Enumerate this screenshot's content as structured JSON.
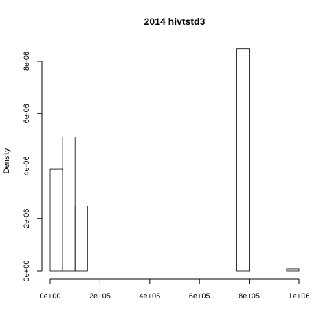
{
  "chart_data": {
    "type": "bar",
    "title": "2014 hivtstd3",
    "xlabel": "",
    "ylabel": "Density",
    "bin_width": 50000,
    "bins": [
      {
        "start": 0,
        "end": 50000,
        "density": 3.88e-06
      },
      {
        "start": 50000,
        "end": 100000,
        "density": 5.1e-06
      },
      {
        "start": 100000,
        "end": 150000,
        "density": 2.48e-06
      },
      {
        "start": 150000,
        "end": 200000,
        "density": 0
      },
      {
        "start": 200000,
        "end": 250000,
        "density": 0
      },
      {
        "start": 250000,
        "end": 300000,
        "density": 0
      },
      {
        "start": 300000,
        "end": 350000,
        "density": 0
      },
      {
        "start": 350000,
        "end": 400000,
        "density": 0
      },
      {
        "start": 400000,
        "end": 450000,
        "density": 0
      },
      {
        "start": 450000,
        "end": 500000,
        "density": 0
      },
      {
        "start": 500000,
        "end": 550000,
        "density": 0
      },
      {
        "start": 550000,
        "end": 600000,
        "density": 0
      },
      {
        "start": 600000,
        "end": 650000,
        "density": 0
      },
      {
        "start": 650000,
        "end": 700000,
        "density": 0
      },
      {
        "start": 700000,
        "end": 750000,
        "density": 0
      },
      {
        "start": 750000,
        "end": 800000,
        "density": 8.48e-06
      },
      {
        "start": 800000,
        "end": 850000,
        "density": 0
      },
      {
        "start": 850000,
        "end": 900000,
        "density": 0
      },
      {
        "start": 900000,
        "end": 950000,
        "density": 0
      },
      {
        "start": 950000,
        "end": 1000000,
        "density": 8e-08
      }
    ],
    "xlim": [
      0,
      1000000
    ],
    "ylim": [
      0,
      8e-06
    ],
    "x_ticks": [
      {
        "value": 0,
        "label": "0e+00"
      },
      {
        "value": 200000,
        "label": "2e+05"
      },
      {
        "value": 400000,
        "label": "4e+05"
      },
      {
        "value": 600000,
        "label": "6e+05"
      },
      {
        "value": 800000,
        "label": "8e+05"
      },
      {
        "value": 1000000,
        "label": "1e+06"
      }
    ],
    "y_ticks": [
      {
        "value": 0,
        "label": "0e+00"
      },
      {
        "value": 2e-06,
        "label": "2e-06"
      },
      {
        "value": 4e-06,
        "label": "4e-06"
      },
      {
        "value": 6e-06,
        "label": "6e-06"
      },
      {
        "value": 8e-06,
        "label": "8e-06"
      }
    ],
    "grid": false,
    "legend": "none"
  }
}
